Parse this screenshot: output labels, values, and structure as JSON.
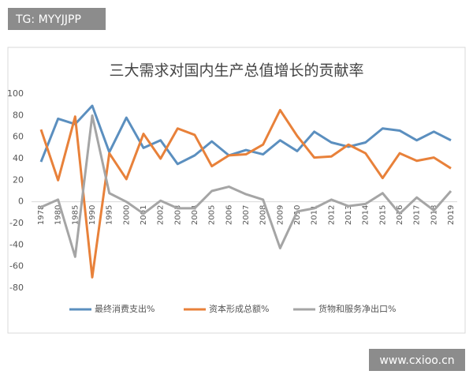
{
  "watermarks": [
    "TG: MYYJJPP",
    "www.cxioo.cn"
  ],
  "chart_data": {
    "type": "line",
    "title": "三大需求对国内生产总值增长的贡献率",
    "categories": [
      "1978",
      "1980",
      "1985",
      "1990",
      "1995",
      "2000",
      "2001",
      "2002",
      "2003",
      "2004",
      "2005",
      "2006",
      "2007",
      "2008",
      "2009",
      "2010",
      "2011",
      "2012",
      "2013",
      "2014",
      "2015",
      "2016",
      "2017",
      "2018",
      "2019"
    ],
    "series": [
      {
        "name": "最终消费支出%",
        "color": "#5b8fbf",
        "values": [
          37,
          77,
          72,
          89,
          46,
          78,
          50,
          57,
          35,
          43,
          56,
          43,
          48,
          44,
          57,
          47,
          65,
          55,
          51,
          55,
          68,
          66,
          57,
          65,
          57
        ]
      },
      {
        "name": "资本形成总额%",
        "color": "#e8813a",
        "values": [
          67,
          20,
          79,
          -70,
          45,
          21,
          63,
          40,
          68,
          62,
          33,
          43,
          44,
          53,
          85,
          61,
          41,
          42,
          53,
          45,
          22,
          45,
          38,
          41,
          31
        ]
      },
      {
        "name": "货物和服务净出口%",
        "color": "#a5a5a5",
        "values": [
          -5,
          2,
          -51,
          80,
          8,
          0,
          -11,
          1,
          -6,
          -6,
          10,
          14,
          7,
          2,
          -43,
          -9,
          -6,
          2,
          -4,
          -2,
          8,
          -11,
          4,
          -8,
          10
        ]
      }
    ],
    "ylim": [
      -80,
      100
    ],
    "yticks": [
      -80,
      -60,
      -40,
      -20,
      0,
      20,
      40,
      60,
      80,
      100
    ],
    "legend": "bottom"
  }
}
